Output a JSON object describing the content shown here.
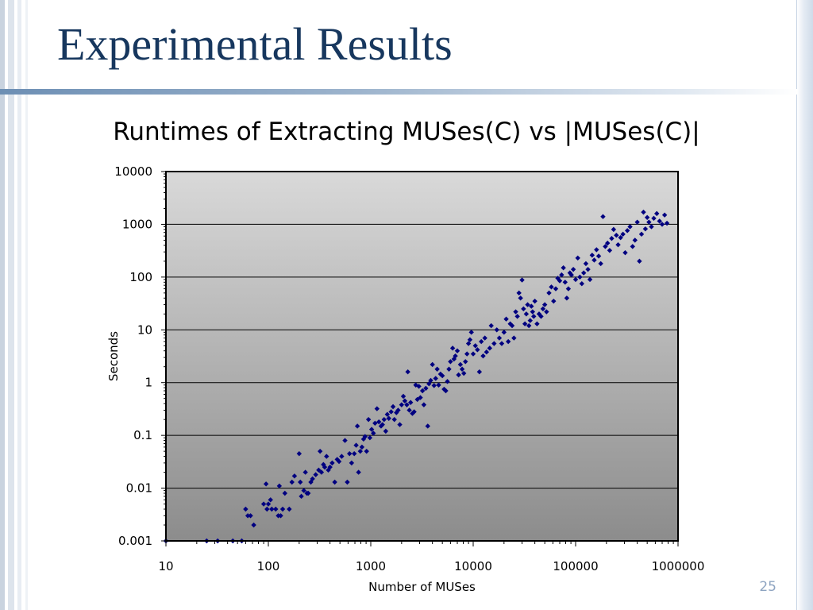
{
  "slide": {
    "title": "Experimental Results",
    "page_number": "25"
  },
  "colors": {
    "title": "#17375e",
    "accent_rule": "#6d8fb4",
    "marker": "#000080",
    "plot_bg_top": "#d9d9d9",
    "plot_bg_bottom": "#8c8c8c"
  },
  "chart_data": {
    "type": "scatter",
    "title": "Runtimes of Extracting MUSes(C) vs |MUSes(C)|",
    "xlabel": "Number of MUSes",
    "ylabel": "Seconds",
    "x_scale": "log",
    "y_scale": "log",
    "xlim": [
      10,
      1000000
    ],
    "ylim": [
      0.001,
      10000
    ],
    "x_ticks": [
      "10",
      "100",
      "1000",
      "10000",
      "100000",
      "1000000"
    ],
    "y_ticks": [
      "0.001",
      "0.01",
      "0.1",
      "1",
      "10",
      "100",
      "1000",
      "10000"
    ],
    "grid": "horizontal major gridlines",
    "legend": "none",
    "marker": "diamond",
    "series": [
      {
        "points": [
          [
            10,
            0.001
          ],
          [
            25,
            0.001
          ],
          [
            32,
            0.001
          ],
          [
            45,
            0.001
          ],
          [
            55,
            0.001
          ],
          [
            60,
            0.004
          ],
          [
            63,
            0.003
          ],
          [
            67,
            0.003
          ],
          [
            72,
            0.002
          ],
          [
            90,
            0.005
          ],
          [
            95,
            0.012
          ],
          [
            97,
            0.004
          ],
          [
            100,
            0.005
          ],
          [
            105,
            0.006
          ],
          [
            108,
            0.004
          ],
          [
            118,
            0.004
          ],
          [
            125,
            0.003
          ],
          [
            128,
            0.011
          ],
          [
            132,
            0.003
          ],
          [
            138,
            0.004
          ],
          [
            145,
            0.008
          ],
          [
            160,
            0.004
          ],
          [
            170,
            0.013
          ],
          [
            180,
            0.017
          ],
          [
            200,
            0.045
          ],
          [
            205,
            0.013
          ],
          [
            210,
            0.007
          ],
          [
            222,
            0.009
          ],
          [
            230,
            0.02
          ],
          [
            238,
            0.008
          ],
          [
            245,
            0.008
          ],
          [
            260,
            0.013
          ],
          [
            270,
            0.015
          ],
          [
            290,
            0.018
          ],
          [
            310,
            0.022
          ],
          [
            320,
            0.05
          ],
          [
            330,
            0.02
          ],
          [
            345,
            0.028
          ],
          [
            355,
            0.025
          ],
          [
            370,
            0.04
          ],
          [
            385,
            0.022
          ],
          [
            400,
            0.025
          ],
          [
            420,
            0.03
          ],
          [
            445,
            0.013
          ],
          [
            470,
            0.035
          ],
          [
            490,
            0.032
          ],
          [
            520,
            0.04
          ],
          [
            560,
            0.08
          ],
          [
            590,
            0.013
          ],
          [
            620,
            0.045
          ],
          [
            650,
            0.03
          ],
          [
            690,
            0.045
          ],
          [
            720,
            0.065
          ],
          [
            740,
            0.15
          ],
          [
            760,
            0.02
          ],
          [
            790,
            0.05
          ],
          [
            820,
            0.06
          ],
          [
            850,
            0.085
          ],
          [
            880,
            0.095
          ],
          [
            910,
            0.05
          ],
          [
            950,
            0.2
          ],
          [
            980,
            0.09
          ],
          [
            1020,
            0.13
          ],
          [
            1060,
            0.11
          ],
          [
            1100,
            0.17
          ],
          [
            1150,
            0.32
          ],
          [
            1200,
            0.18
          ],
          [
            1260,
            0.15
          ],
          [
            1300,
            0.16
          ],
          [
            1350,
            0.2
          ],
          [
            1400,
            0.12
          ],
          [
            1450,
            0.25
          ],
          [
            1500,
            0.21
          ],
          [
            1580,
            0.28
          ],
          [
            1650,
            0.35
          ],
          [
            1700,
            0.2
          ],
          [
            1780,
            0.27
          ],
          [
            1850,
            0.3
          ],
          [
            1920,
            0.16
          ],
          [
            2000,
            0.38
          ],
          [
            2080,
            0.55
          ],
          [
            2150,
            0.45
          ],
          [
            2250,
            0.38
          ],
          [
            2300,
            1.6
          ],
          [
            2380,
            0.3
          ],
          [
            2450,
            0.42
          ],
          [
            2550,
            0.26
          ],
          [
            2650,
            0.28
          ],
          [
            2750,
            0.9
          ],
          [
            2850,
            0.48
          ],
          [
            2950,
            0.85
          ],
          [
            3050,
            0.52
          ],
          [
            3200,
            0.7
          ],
          [
            3300,
            0.38
          ],
          [
            3450,
            0.78
          ],
          [
            3600,
            0.15
          ],
          [
            3700,
            0.95
          ],
          [
            3850,
            1.1
          ],
          [
            4000,
            2.2
          ],
          [
            4150,
            0.88
          ],
          [
            4300,
            1.2
          ],
          [
            4450,
            1.8
          ],
          [
            4600,
            0.9
          ],
          [
            4800,
            1.45
          ],
          [
            5000,
            1.35
          ],
          [
            5200,
            0.75
          ],
          [
            5400,
            0.7
          ],
          [
            5600,
            1.05
          ],
          [
            5800,
            1.8
          ],
          [
            6000,
            2.5
          ],
          [
            6300,
            4.5
          ],
          [
            6500,
            2.8
          ],
          [
            6700,
            3.2
          ],
          [
            7000,
            4
          ],
          [
            7200,
            1.4
          ],
          [
            7500,
            2.2
          ],
          [
            7800,
            1.8
          ],
          [
            8100,
            1.5
          ],
          [
            8400,
            2.5
          ],
          [
            8700,
            3.5
          ],
          [
            9000,
            5.5
          ],
          [
            9300,
            6.5
          ],
          [
            9600,
            9
          ],
          [
            10000,
            3.5
          ],
          [
            10500,
            5
          ],
          [
            11000,
            4.2
          ],
          [
            11500,
            1.6
          ],
          [
            12000,
            6
          ],
          [
            12500,
            3.2
          ],
          [
            13000,
            7
          ],
          [
            13500,
            3.8
          ],
          [
            14500,
            4.5
          ],
          [
            15000,
            12
          ],
          [
            16000,
            5.5
          ],
          [
            17000,
            10
          ],
          [
            18000,
            7
          ],
          [
            19000,
            5.5
          ],
          [
            20000,
            9
          ],
          [
            21000,
            16
          ],
          [
            22000,
            6
          ],
          [
            23000,
            13
          ],
          [
            24000,
            12
          ],
          [
            25000,
            7
          ],
          [
            26000,
            22
          ],
          [
            27000,
            18
          ],
          [
            28000,
            50
          ],
          [
            29000,
            40
          ],
          [
            30000,
            88
          ],
          [
            31000,
            25
          ],
          [
            32000,
            13
          ],
          [
            33000,
            20
          ],
          [
            34000,
            30
          ],
          [
            35000,
            12
          ],
          [
            36000,
            15
          ],
          [
            37000,
            28
          ],
          [
            38000,
            22
          ],
          [
            39000,
            18
          ],
          [
            40000,
            35
          ],
          [
            42000,
            13
          ],
          [
            44000,
            20
          ],
          [
            46000,
            18
          ],
          [
            48000,
            25
          ],
          [
            50000,
            30
          ],
          [
            52000,
            22
          ],
          [
            55000,
            50
          ],
          [
            58000,
            65
          ],
          [
            61000,
            35
          ],
          [
            64000,
            60
          ],
          [
            67000,
            95
          ],
          [
            70000,
            85
          ],
          [
            73000,
            110
          ],
          [
            76000,
            150
          ],
          [
            79000,
            80
          ],
          [
            82000,
            40
          ],
          [
            85000,
            60
          ],
          [
            88000,
            120
          ],
          [
            91000,
            110
          ],
          [
            95000,
            140
          ],
          [
            100000,
            90
          ],
          [
            105000,
            230
          ],
          [
            110000,
            100
          ],
          [
            115000,
            75
          ],
          [
            120000,
            120
          ],
          [
            126000,
            180
          ],
          [
            132000,
            140
          ],
          [
            138000,
            90
          ],
          [
            145000,
            260
          ],
          [
            152000,
            210
          ],
          [
            160000,
            330
          ],
          [
            168000,
            250
          ],
          [
            176000,
            180
          ],
          [
            185000,
            1400
          ],
          [
            195000,
            380
          ],
          [
            205000,
            440
          ],
          [
            215000,
            320
          ],
          [
            225000,
            540
          ],
          [
            235000,
            800
          ],
          [
            250000,
            620
          ],
          [
            260000,
            410
          ],
          [
            275000,
            560
          ],
          [
            290000,
            650
          ],
          [
            305000,
            290
          ],
          [
            320000,
            760
          ],
          [
            340000,
            900
          ],
          [
            360000,
            380
          ],
          [
            380000,
            500
          ],
          [
            400000,
            1100
          ],
          [
            420000,
            200
          ],
          [
            440000,
            650
          ],
          [
            460000,
            1700
          ],
          [
            480000,
            820
          ],
          [
            500000,
            1350
          ],
          [
            520000,
            1100
          ],
          [
            550000,
            900
          ],
          [
            580000,
            1300
          ],
          [
            620000,
            1600
          ],
          [
            660000,
            1150
          ],
          [
            700000,
            1000
          ],
          [
            740000,
            1500
          ],
          [
            780000,
            1050
          ]
        ]
      }
    ]
  }
}
